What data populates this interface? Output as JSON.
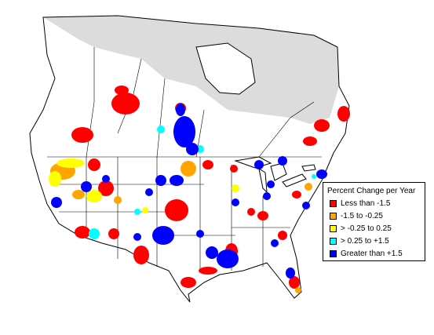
{
  "legend": {
    "title": "Percent Change per Year",
    "items": [
      {
        "label": "Less than -1.5",
        "color": "#ff0000"
      },
      {
        "label": "-1.5 to -0.25",
        "color": "#ffa500"
      },
      {
        "label": "> -0.25 to 0.25",
        "color": "#ffff00"
      },
      {
        "label": "> 0.25 to +1.5",
        "color": "#00ffff"
      },
      {
        "label": "Greater than +1.5",
        "color": "#0000ff"
      }
    ]
  },
  "colors": {
    "land": "#ffffff",
    "no_data_region": "#dcdcdc",
    "boundary": "#000000"
  }
}
